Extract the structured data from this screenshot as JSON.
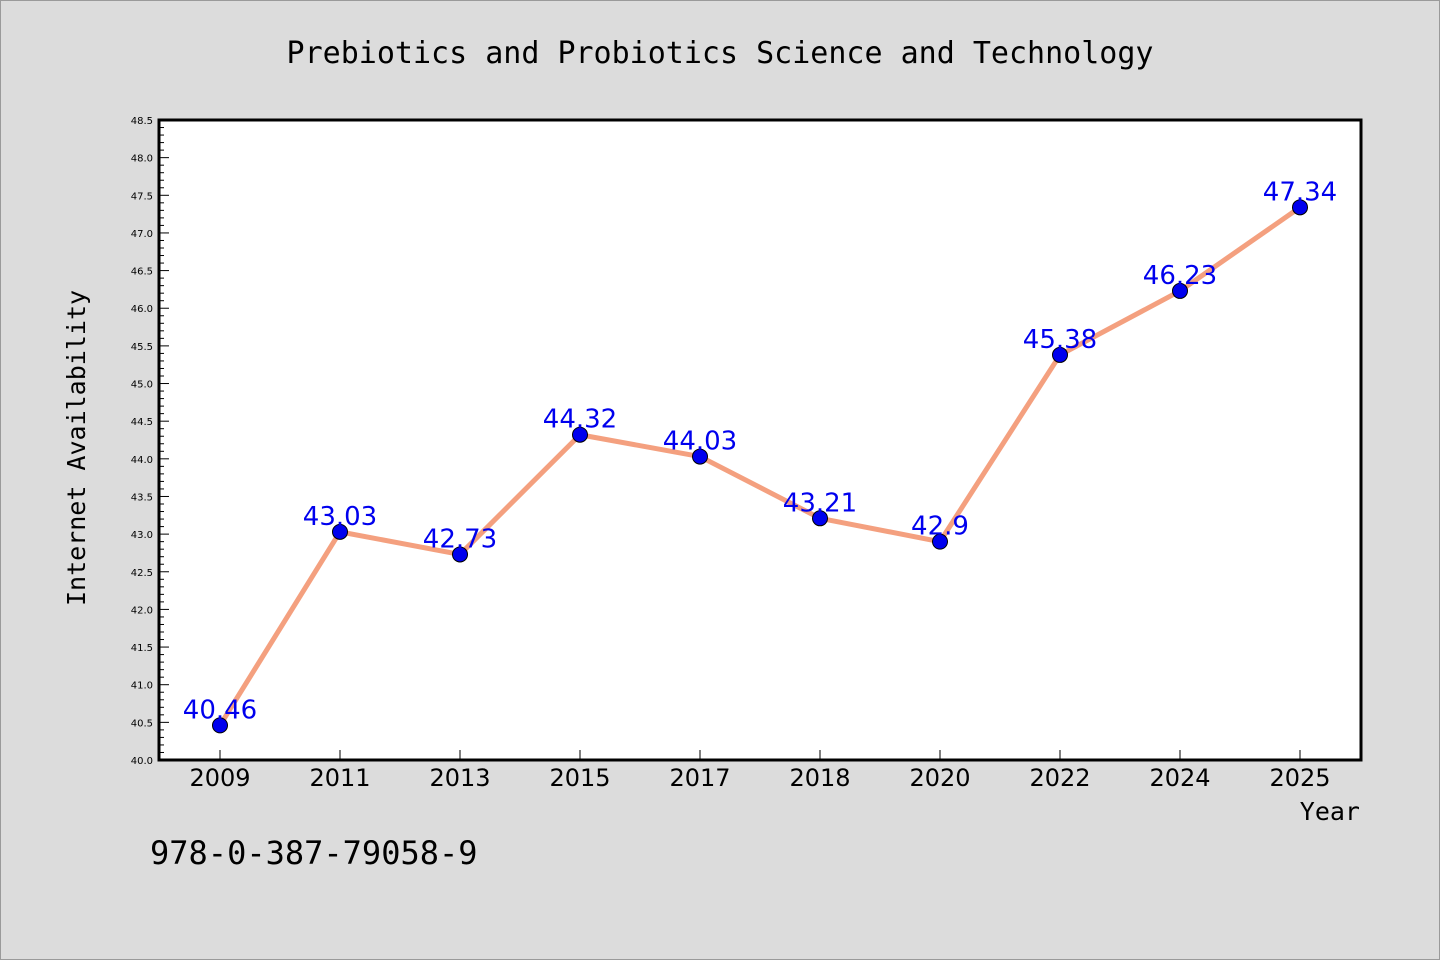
{
  "chart_data": {
    "type": "line",
    "title": "Prebiotics and Probiotics Science and Technology",
    "xlabel": "Year",
    "ylabel": "Internet Availability",
    "categories": [
      "2009",
      "2011",
      "2013",
      "2015",
      "2017",
      "2018",
      "2020",
      "2022",
      "2024",
      "2025"
    ],
    "values": [
      40.46,
      43.03,
      42.73,
      44.32,
      44.03,
      43.21,
      42.9,
      45.38,
      46.23,
      47.34
    ],
    "data_labels": [
      "40.46",
      "43.03",
      "42.73",
      "44.32",
      "44.03",
      "43.21",
      "42.9",
      "45.38",
      "46.23",
      "47.34"
    ],
    "ylim": [
      40.0,
      48.5
    ],
    "ytick_labels": [
      "40.0",
      "40.5",
      "41.0",
      "41.5",
      "42.0",
      "42.5",
      "43.0",
      "43.5",
      "44.0",
      "44.5",
      "45.0",
      "45.5",
      "46.0",
      "46.5",
      "47.0",
      "47.5",
      "48.0",
      "48.5"
    ],
    "grid": false,
    "legend": "none",
    "colors": {
      "line": "#f4a07f",
      "marker": "#0000ee",
      "data_label": "#0000ee",
      "plot_background": "#ffffff",
      "page_background": "#dcdcdc"
    }
  },
  "footer": {
    "text": "978-0-387-79058-9"
  }
}
